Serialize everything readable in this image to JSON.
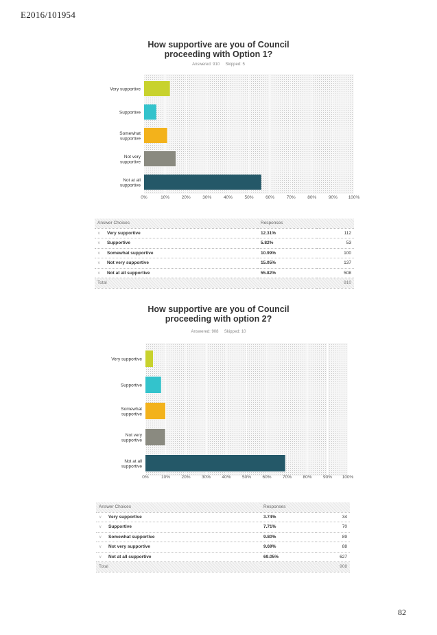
{
  "doc_ref": "E2016/101954",
  "page_number": "82",
  "questions": [
    {
      "title_line1": "How supportive are you of Council",
      "title_line2": "proceeding with Option 1?",
      "answered": "Answered: 910",
      "skipped": "Skipped: 5",
      "table": {
        "col_choice": "Answer Choices",
        "col_responses": "Responses",
        "rows": [
          {
            "label": "Very supportive",
            "pct": "12.31%",
            "count": "112"
          },
          {
            "label": "Supportive",
            "pct": "5.82%",
            "count": "53"
          },
          {
            "label": "Somewhat supportive",
            "pct": "10.99%",
            "count": "100"
          },
          {
            "label": "Not very supportive",
            "pct": "15.05%",
            "count": "137"
          },
          {
            "label": "Not at all supportive",
            "pct": "55.82%",
            "count": "508"
          }
        ],
        "total_label": "Total",
        "total_value": "910"
      }
    },
    {
      "title_line1": "How supportive are you of Council",
      "title_line2": "proceeding with option 2?",
      "answered": "Answered: 908",
      "skipped": "Skipped: 10",
      "table": {
        "col_choice": "Answer Choices",
        "col_responses": "Responses",
        "rows": [
          {
            "label": "Very supportive",
            "pct": "3.74%",
            "count": "34"
          },
          {
            "label": "Supportive",
            "pct": "7.71%",
            "count": "70"
          },
          {
            "label": "Somewhat supportive",
            "pct": "9.80%",
            "count": "89"
          },
          {
            "label": "Not very supportive",
            "pct": "9.69%",
            "count": "88"
          },
          {
            "label": "Not at all supportive",
            "pct": "69.05%",
            "count": "627"
          }
        ],
        "total_label": "Total",
        "total_value": "908"
      }
    }
  ],
  "chart_data": [
    {
      "type": "bar",
      "orientation": "horizontal",
      "title": "How supportive are you of Council proceeding with Option 1?",
      "categories": [
        [
          "Very supportive"
        ],
        [
          "Supportive"
        ],
        [
          "Somewhat",
          "supportive"
        ],
        [
          "Not very",
          "supportive"
        ],
        [
          "Not at all",
          "supportive"
        ]
      ],
      "values": [
        12.31,
        5.82,
        10.99,
        15.05,
        55.82
      ],
      "colors": [
        "#c8d22d",
        "#33c3cc",
        "#f3b21b",
        "#8a8a80",
        "#245868"
      ],
      "xlim": [
        0,
        100
      ],
      "xticks": [
        "0%",
        "10%",
        "20%",
        "30%",
        "40%",
        "50%",
        "60%",
        "70%",
        "80%",
        "90%",
        "100%"
      ],
      "grid": true
    },
    {
      "type": "bar",
      "orientation": "horizontal",
      "title": "How supportive are you of Council proceeding with option 2?",
      "categories": [
        [
          "Very supportive"
        ],
        [
          "Supportive"
        ],
        [
          "Somewhat",
          "supportive"
        ],
        [
          "Not very",
          "supportive"
        ],
        [
          "Not at all",
          "supportive"
        ]
      ],
      "values": [
        3.74,
        7.71,
        9.8,
        9.69,
        69.05
      ],
      "colors": [
        "#c8d22d",
        "#33c3cc",
        "#f3b21b",
        "#8a8a80",
        "#245868"
      ],
      "xlim": [
        0,
        100
      ],
      "xticks": [
        "0%",
        "10%",
        "20%",
        "30%",
        "40%",
        "50%",
        "60%",
        "70%",
        "80%",
        "90%",
        "100%"
      ],
      "grid": true
    }
  ]
}
